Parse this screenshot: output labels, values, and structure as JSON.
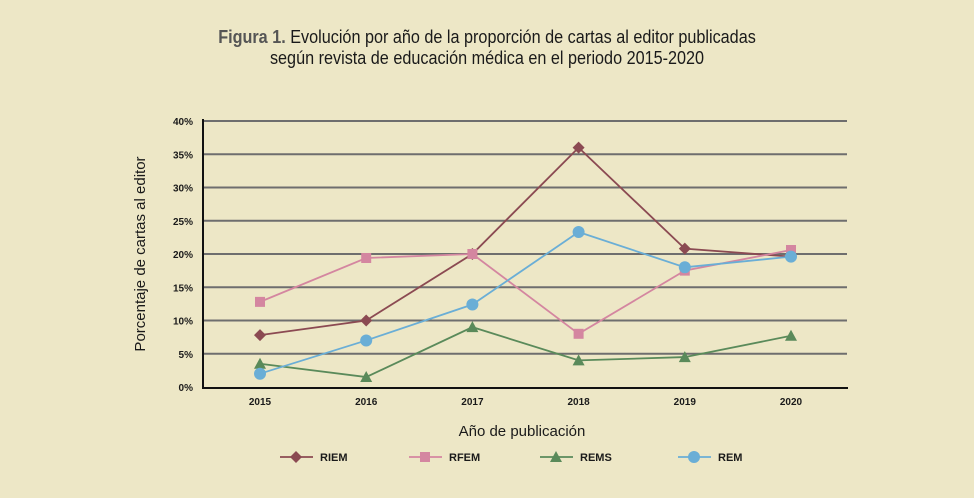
{
  "title": {
    "prefix": "Figura 1.",
    "line1": " Evolución por año de la proporción de cartas al editor publicadas",
    "line2": "según revista de educación médica en el periodo 2015-2020"
  },
  "chart_data": {
    "type": "line",
    "title": "Figura 1. Evolución por año de la proporción de cartas al editor publicadas según revista de educación médica en el periodo 2015-2020",
    "xlabel": "Año de publicación",
    "ylabel": "Porcentaje de cartas al editor",
    "x": [
      "2015",
      "2016",
      "2017",
      "2018",
      "2019",
      "2020"
    ],
    "ylim": [
      0,
      40
    ],
    "yticks": [
      0,
      5,
      10,
      15,
      20,
      25,
      30,
      35,
      40
    ],
    "ytick_labels": [
      "0%",
      "5%",
      "10%",
      "15%",
      "20%",
      "25%",
      "30%",
      "35%",
      "40%"
    ],
    "grid": true,
    "legend_position": "bottom",
    "series": [
      {
        "name": "RIEM",
        "color": "#8b4a52",
        "marker": "diamond",
        "values": [
          7.8,
          10.0,
          20.0,
          36.0,
          20.8,
          19.6
        ]
      },
      {
        "name": "RFEM",
        "color": "#d486a0",
        "marker": "square",
        "values": [
          12.8,
          19.4,
          20.0,
          8.0,
          17.5,
          20.6
        ]
      },
      {
        "name": "REMS",
        "color": "#5a8a5a",
        "marker": "triangle",
        "values": [
          3.5,
          1.5,
          9.0,
          4.0,
          4.5,
          7.7
        ]
      },
      {
        "name": "REM",
        "color": "#6aaed6",
        "marker": "circle",
        "values": [
          2.0,
          7.0,
          12.4,
          23.3,
          18.0,
          19.6
        ]
      }
    ]
  }
}
